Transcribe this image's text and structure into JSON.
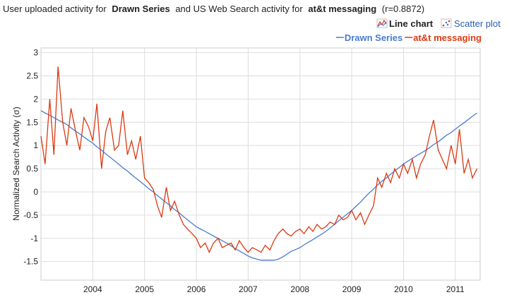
{
  "chart_data": {
    "type": "line",
    "title_lead": "User uploaded activity for",
    "title_mid": "and US Web Search activity for",
    "title_tail": "(r=0.8872)",
    "buttons": [
      "Line chart",
      "Scatter plot"
    ],
    "ylabel": "Normalized Search Activity (σ)",
    "xlim": [
      2003,
      2011.48
    ],
    "xticks": [
      2004,
      2005,
      2006,
      2007,
      2008,
      2009,
      2010,
      2011
    ],
    "ylim": [
      -1.9,
      3.1
    ],
    "yticks": [
      3,
      2.5,
      2,
      1.5,
      1,
      0.5,
      0,
      -0.5,
      -1,
      -1.5
    ],
    "grid": true,
    "legend": "top-right",
    "x": [
      2003,
      2003.08,
      2003.17,
      2003.25,
      2003.33,
      2003.42,
      2003.5,
      2003.58,
      2003.67,
      2003.75,
      2003.83,
      2003.92,
      2004,
      2004.08,
      2004.17,
      2004.25,
      2004.33,
      2004.42,
      2004.5,
      2004.58,
      2004.67,
      2004.75,
      2004.83,
      2004.92,
      2005,
      2005.08,
      2005.17,
      2005.25,
      2005.33,
      2005.42,
      2005.5,
      2005.58,
      2005.67,
      2005.75,
      2005.83,
      2005.92,
      2006,
      2006.08,
      2006.17,
      2006.25,
      2006.33,
      2006.42,
      2006.5,
      2006.58,
      2006.67,
      2006.75,
      2006.83,
      2006.92,
      2007,
      2007.08,
      2007.17,
      2007.25,
      2007.33,
      2007.42,
      2007.5,
      2007.58,
      2007.67,
      2007.75,
      2007.83,
      2007.92,
      2008,
      2008.08,
      2008.17,
      2008.25,
      2008.33,
      2008.42,
      2008.5,
      2008.58,
      2008.67,
      2008.75,
      2008.83,
      2008.92,
      2009,
      2009.08,
      2009.17,
      2009.25,
      2009.33,
      2009.42,
      2009.5,
      2009.58,
      2009.67,
      2009.75,
      2009.83,
      2009.92,
      2010,
      2010.08,
      2010.17,
      2010.25,
      2010.33,
      2010.42,
      2010.5,
      2010.58,
      2010.67,
      2010.75,
      2010.83,
      2010.92,
      2011,
      2011.08,
      2011.17,
      2011.25,
      2011.33,
      2011.42
    ],
    "series": [
      {
        "name": "Drawn Series",
        "color": "#4a7bd0",
        "values": [
          1.75,
          1.7,
          1.65,
          1.6,
          1.55,
          1.5,
          1.45,
          1.38,
          1.31,
          1.25,
          1.18,
          1.11,
          1.05,
          0.97,
          0.9,
          0.82,
          0.75,
          0.67,
          0.6,
          0.52,
          0.45,
          0.37,
          0.3,
          0.22,
          0.15,
          0.07,
          0.0,
          -0.08,
          -0.15,
          -0.23,
          -0.3,
          -0.38,
          -0.45,
          -0.53,
          -0.6,
          -0.68,
          -0.75,
          -0.8,
          -0.85,
          -0.9,
          -0.95,
          -1.0,
          -1.05,
          -1.1,
          -1.16,
          -1.22,
          -1.27,
          -1.33,
          -1.38,
          -1.42,
          -1.45,
          -1.47,
          -1.47,
          -1.47,
          -1.47,
          -1.45,
          -1.4,
          -1.34,
          -1.28,
          -1.24,
          -1.2,
          -1.14,
          -1.08,
          -1.03,
          -0.97,
          -0.91,
          -0.85,
          -0.78,
          -0.7,
          -0.62,
          -0.55,
          -0.47,
          -0.4,
          -0.31,
          -0.22,
          -0.12,
          -0.03,
          0.06,
          0.15,
          0.23,
          0.3,
          0.38,
          0.45,
          0.53,
          0.6,
          0.66,
          0.72,
          0.78,
          0.83,
          0.89,
          0.95,
          1.02,
          1.08,
          1.15,
          1.22,
          1.28,
          1.35,
          1.42,
          1.49,
          1.56,
          1.63,
          1.7
        ]
      },
      {
        "name": "at&t messaging",
        "color": "#dc3912",
        "values": [
          1.2,
          0.6,
          2.0,
          0.8,
          2.7,
          1.5,
          1.0,
          1.8,
          1.3,
          0.9,
          1.6,
          1.4,
          1.1,
          1.9,
          0.5,
          1.3,
          1.6,
          0.9,
          1.0,
          1.75,
          0.8,
          1.1,
          0.7,
          1.2,
          0.3,
          0.2,
          0.05,
          -0.3,
          -0.55,
          0.1,
          -0.4,
          -0.2,
          -0.5,
          -0.7,
          -0.8,
          -0.9,
          -1.0,
          -1.2,
          -1.1,
          -1.3,
          -1.1,
          -1.0,
          -1.2,
          -1.15,
          -1.1,
          -1.25,
          -1.05,
          -1.2,
          -1.3,
          -1.2,
          -1.25,
          -1.3,
          -1.15,
          -1.25,
          -1.05,
          -0.9,
          -0.8,
          -0.9,
          -0.95,
          -0.85,
          -0.8,
          -0.9,
          -0.75,
          -0.85,
          -0.7,
          -0.8,
          -0.75,
          -0.65,
          -0.7,
          -0.5,
          -0.6,
          -0.55,
          -0.4,
          -0.6,
          -0.45,
          -0.7,
          -0.5,
          -0.3,
          0.3,
          0.1,
          0.4,
          0.2,
          0.5,
          0.3,
          0.6,
          0.4,
          0.7,
          0.3,
          0.6,
          0.8,
          1.2,
          1.55,
          0.9,
          0.7,
          0.5,
          1.0,
          0.6,
          1.35,
          0.4,
          0.7,
          0.3,
          0.5
        ]
      }
    ]
  }
}
